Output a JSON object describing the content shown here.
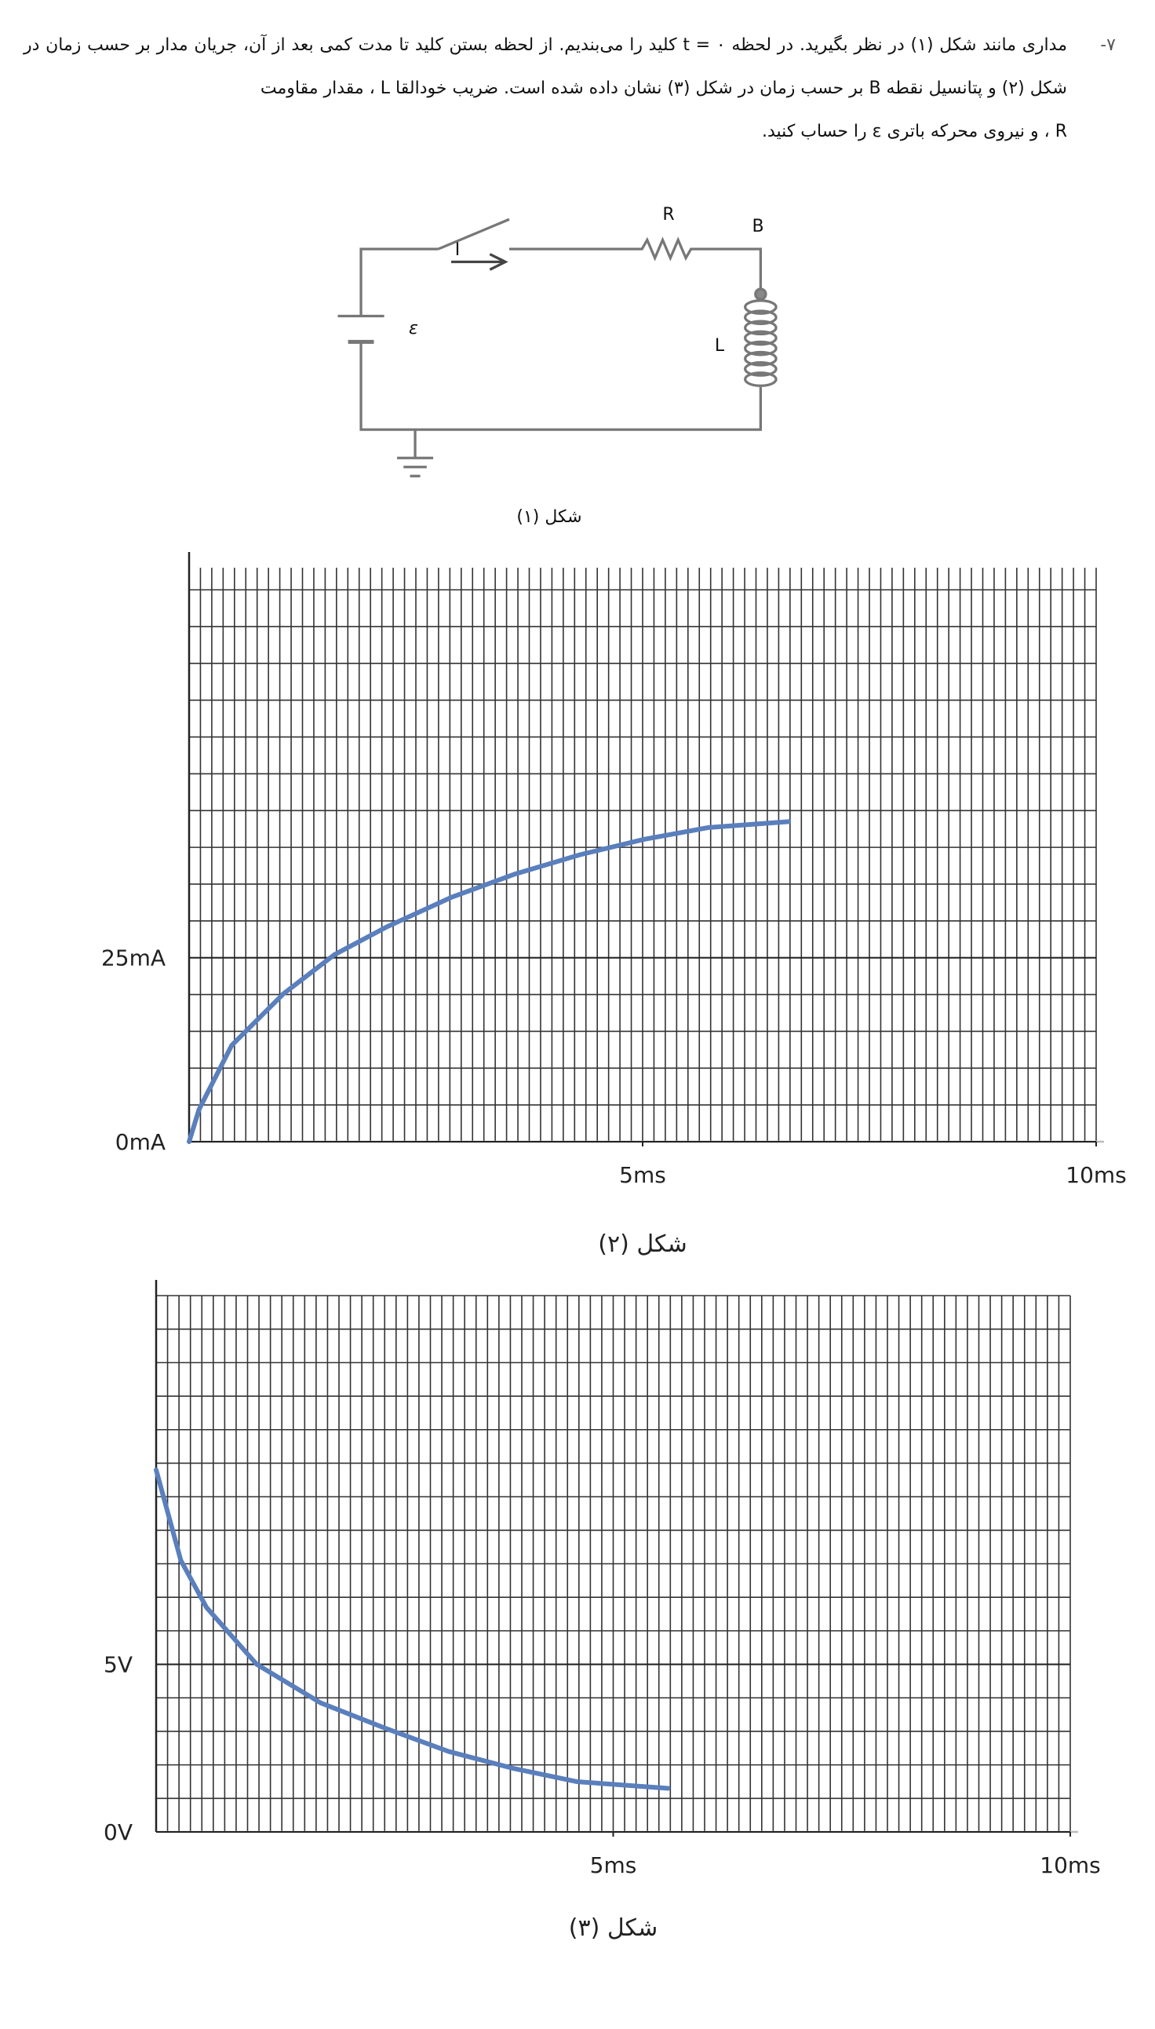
{
  "question": {
    "number": "-۷",
    "paragraphs": [
      "مداری مانند شکل (۱) در نظر بگیرید. در لحظه t = ۰ کلید را می‌بندیم. از لحظه بستن کلید تا مدت کمی بعد از آن، جریان مدار بر حسب زمان در شکل (۲) و پتانسیل نقطه B بر حسب زمان در شکل (۳) نشان داده شده است. ضریب خودالقا L ، مقدار مقاومت",
      "R ، و نیروی محرکه باتری ε را حساب کنید."
    ]
  },
  "circuit": {
    "resistor": "R",
    "point": "B",
    "current": "I",
    "inductor": "L",
    "battery": "ε",
    "caption": "شکل (۱)"
  },
  "chart_data": [
    {
      "type": "line",
      "caption": "شکل (۲)",
      "x": [
        0,
        0.11,
        0.47,
        1.04,
        1.6,
        2.18,
        2.89,
        3.6,
        4.31,
        5.02,
        5.73,
        6.61
      ],
      "series": [
        {
          "color": "#5a7fbd",
          "values": [
            0,
            4.4,
            13.1,
            20.1,
            25.4,
            29.2,
            33.2,
            36.4,
            39,
            41.1,
            42.7,
            43.5
          ]
        }
      ],
      "xlim": [
        0,
        10
      ],
      "ylim": [
        0,
        78
      ],
      "xticks": [
        {
          "value": 5,
          "label": "5ms"
        },
        {
          "value": 10,
          "label": "10ms"
        }
      ],
      "yticks": [
        {
          "value": 0,
          "label": "0mA"
        },
        {
          "value": 25,
          "label": "25mA"
        }
      ],
      "grid": true
    },
    {
      "type": "line",
      "caption": "شکل (۳)",
      "x": [
        0,
        0.27,
        0.55,
        1.1,
        1.8,
        2.5,
        3.2,
        3.9,
        4.6,
        5.6
      ],
      "series": [
        {
          "color": "#5a7fbd",
          "values": [
            10.8,
            8.1,
            6.7,
            5.0,
            3.85,
            3.1,
            2.4,
            1.9,
            1.5,
            1.3
          ]
        }
      ],
      "xlim": [
        0,
        10
      ],
      "ylim": [
        0,
        16
      ],
      "xticks": [
        {
          "value": 5,
          "label": "5ms"
        },
        {
          "value": 10,
          "label": "10ms"
        }
      ],
      "yticks": [
        {
          "value": 0,
          "label": "0V"
        },
        {
          "value": 5,
          "label": "5V"
        }
      ],
      "grid": true
    }
  ]
}
